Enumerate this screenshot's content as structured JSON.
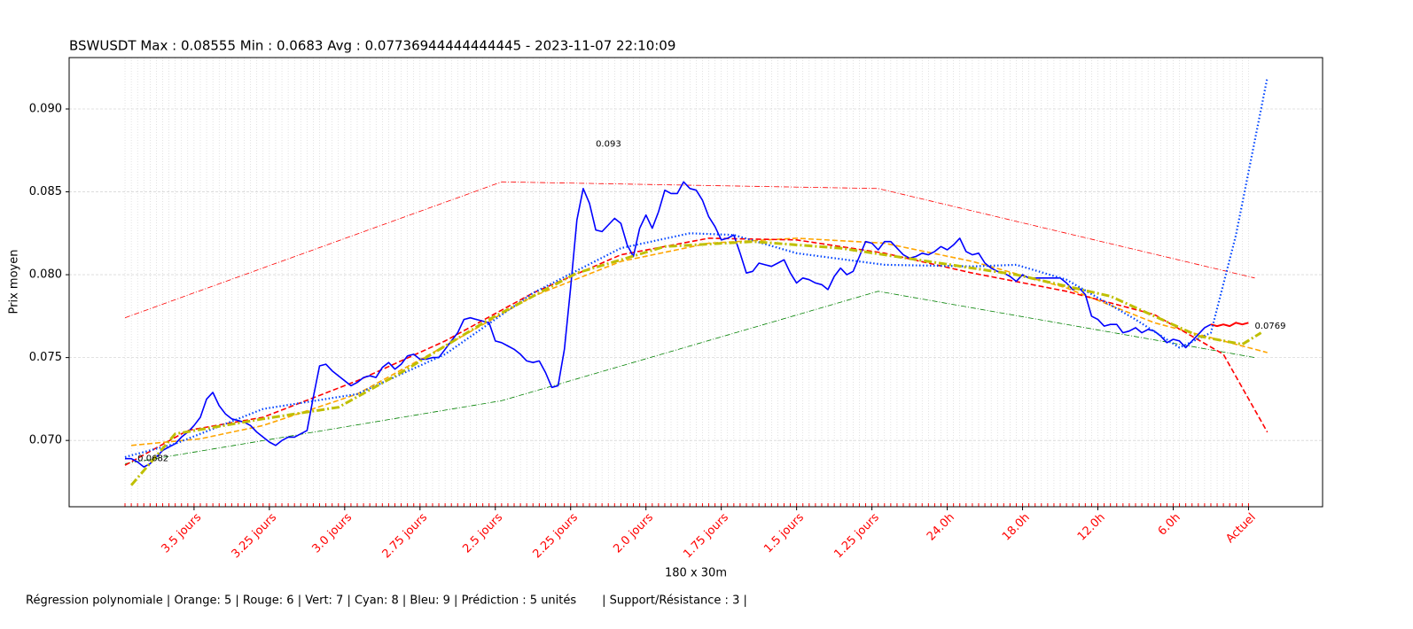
{
  "chart_data": {
    "type": "line",
    "title": "BSWUSDT Max : 0.08555 Min : 0.0683 Avg : 0.07736944444444445 - 2023-11-07 22:10:09",
    "xlabel": "180 x 30m",
    "ylabel": "Prix moyen",
    "footer": "Régression polynomiale | Orange: 5 | Rouge: 6 | Vert: 7 | Cyan: 8 | Bleu: 9 | Prédiction : 5 unités       | Support/Résistance : 3 |",
    "xlim": [
      -8.9,
      190.8
    ],
    "ylim": [
      0.066,
      0.0931
    ],
    "grid": true,
    "yticks": [
      {
        "value": 0.07,
        "label": "0.070"
      },
      0.075,
      {
        "value": 0.08,
        "label": "0.080"
      },
      0.085,
      {
        "value": 0.09,
        "label": "0.090"
      }
    ],
    "xticks": [
      {
        "value": 11,
        "label": "3.5 jours"
      },
      {
        "value": 23,
        "label": "3.25 jours"
      },
      {
        "value": 35,
        "label": "3.0 jours"
      },
      {
        "value": 47,
        "label": "2.75 jours"
      },
      {
        "value": 59,
        "label": "2.5 jours"
      },
      {
        "value": 71,
        "label": "2.25 jours"
      },
      {
        "value": 83,
        "label": "2.0 jours"
      },
      {
        "value": 95,
        "label": "1.75 jours"
      },
      {
        "value": 107,
        "label": "1.5 jours"
      },
      {
        "value": 119,
        "label": "1.25 jours"
      },
      {
        "value": 131,
        "label": "24.0h"
      },
      {
        "value": 143,
        "label": "18.0h"
      },
      {
        "value": 155,
        "label": "12.0h"
      },
      {
        "value": 167,
        "label": "6.0h"
      },
      {
        "value": 179,
        "label": "Actuel"
      }
    ],
    "series": [
      {
        "color": "#ff0000",
        "style": "dashdot",
        "x": [
          0,
          60,
          120,
          180
        ],
        "values": [
          0.0774,
          0.0856,
          0.0852,
          0.0798
        ]
      },
      {
        "color": "#008000",
        "style": "dashdot",
        "x": [
          0,
          60,
          120,
          180
        ],
        "values": [
          0.0686,
          0.0724,
          0.079,
          0.075
        ]
      },
      {
        "color": "#ffa500",
        "style": "dashed",
        "x": [
          1,
          12,
          22,
          37,
          51,
          65,
          79,
          93,
          107,
          121,
          135,
          150,
          164,
          182
        ],
        "values": [
          0.0697,
          0.0701,
          0.0709,
          0.0728,
          0.0757,
          0.0787,
          0.0808,
          0.0819,
          0.0822,
          0.0819,
          0.0808,
          0.0792,
          0.0771,
          0.0753
        ]
      },
      {
        "color": "#ff0000",
        "style": "dashed",
        "x": [
          0,
          10,
          22,
          37,
          51,
          65,
          79,
          93,
          107,
          121,
          135,
          150,
          164,
          175,
          182
        ],
        "values": [
          0.0685,
          0.0706,
          0.0714,
          0.0736,
          0.076,
          0.0789,
          0.0812,
          0.0822,
          0.0821,
          0.0813,
          0.0801,
          0.079,
          0.0776,
          0.0752,
          0.0705
        ]
      },
      {
        "color": "#0000ff",
        "values": [
          0.0689,
          0.0689,
          0.0687,
          0.0684,
          0.0686,
          0.069,
          0.0694,
          0.0696,
          0.0698,
          0.0702,
          0.0705,
          0.0709,
          0.0714,
          0.0725,
          0.0729,
          0.0721,
          0.0716,
          0.0713,
          0.0712,
          0.0711,
          0.0709,
          0.0705,
          0.0702,
          0.0699,
          0.0697,
          0.07,
          0.0702,
          0.0702,
          0.0704,
          0.0706,
          0.0726,
          0.0745,
          0.0746,
          0.0742,
          0.0739,
          0.0736,
          0.0733,
          0.0735,
          0.0738,
          0.0739,
          0.0738,
          0.0744,
          0.0747,
          0.0743,
          0.0746,
          0.0751,
          0.0752,
          0.0749,
          0.0749,
          0.075,
          0.075,
          0.0755,
          0.076,
          0.0765,
          0.0773,
          0.0774,
          0.0773,
          0.0772,
          0.0771,
          0.076,
          0.0759,
          0.0757,
          0.0755,
          0.0752,
          0.0748,
          0.0747,
          0.0748,
          0.0741,
          0.0732,
          0.0733,
          0.0755,
          0.0792,
          0.0833,
          0.0852,
          0.0843,
          0.0827,
          0.0826,
          0.083,
          0.0834,
          0.0831,
          0.0818,
          0.0811,
          0.0828,
          0.0836,
          0.0828,
          0.0838,
          0.0851,
          0.0849,
          0.0849,
          0.0856,
          0.0852,
          0.0851,
          0.0845,
          0.0835,
          0.0829,
          0.0821,
          0.0822,
          0.0824,
          0.0813,
          0.0801,
          0.0802,
          0.0807,
          0.0806,
          0.0805,
          0.0807,
          0.0809,
          0.0801,
          0.0795,
          0.0798,
          0.0797,
          0.0795,
          0.0794,
          0.0791,
          0.0799,
          0.0804,
          0.08,
          0.0802,
          0.0811,
          0.082,
          0.0819,
          0.0815,
          0.082,
          0.082,
          0.0816,
          0.0812,
          0.081,
          0.0811,
          0.0813,
          0.0812,
          0.0814,
          0.0817,
          0.0815,
          0.0818,
          0.0822,
          0.0814,
          0.0812,
          0.0813,
          0.0807,
          0.0804,
          0.0802,
          0.0801,
          0.0799,
          0.0796,
          0.08,
          0.0798,
          0.0798,
          0.0798,
          0.0798,
          0.0798,
          0.0798,
          0.0795,
          0.0791,
          0.0792,
          0.0788,
          0.0775,
          0.0773,
          0.0769,
          0.077,
          0.077,
          0.0765,
          0.0766,
          0.0768,
          0.0765,
          0.0767,
          0.0766,
          0.0763,
          0.0759,
          0.0761,
          0.076,
          0.0756,
          0.076,
          0.0764,
          0.0768,
          0.077
        ]
      },
      {
        "color": "#ff0000",
        "style": "solid-thick",
        "x": [
          173,
          174,
          175,
          176,
          177,
          178,
          179
        ],
        "values": [
          0.077,
          0.0769,
          0.077,
          0.0769,
          0.0771,
          0.077,
          0.0771
        ]
      },
      {
        "color": "#0044ff",
        "style": "dotted",
        "x": [
          0,
          8,
          22,
          37,
          51,
          65,
          79,
          90,
          97,
          107,
          121,
          135,
          142,
          150,
          161,
          168,
          173,
          177,
          182
        ],
        "values": [
          0.069,
          0.0698,
          0.0719,
          0.0728,
          0.0752,
          0.0789,
          0.0816,
          0.0825,
          0.0824,
          0.0813,
          0.0806,
          0.0805,
          0.0806,
          0.0797,
          0.0773,
          0.0756,
          0.0765,
          0.0824,
          0.0919
        ]
      },
      {
        "color": "#bfbf00",
        "style": "dashdot-thick",
        "x": [
          1,
          8,
          22,
          34,
          44,
          58,
          72,
          86,
          100,
          114,
          128,
          142,
          157,
          171,
          178,
          181
        ],
        "values": [
          0.0673,
          0.0704,
          0.0713,
          0.072,
          0.0741,
          0.0773,
          0.0801,
          0.0817,
          0.082,
          0.0816,
          0.0808,
          0.08,
          0.0787,
          0.0763,
          0.0758,
          0.0765
        ]
      }
    ],
    "annotations": [
      {
        "text": "0.093",
        "x": 75,
        "y": 0.0879
      },
      {
        "text": "0.0682",
        "x": 2,
        "y": 0.0689
      },
      {
        "text": "0.0769",
        "x": 180,
        "y": 0.0769
      }
    ]
  }
}
